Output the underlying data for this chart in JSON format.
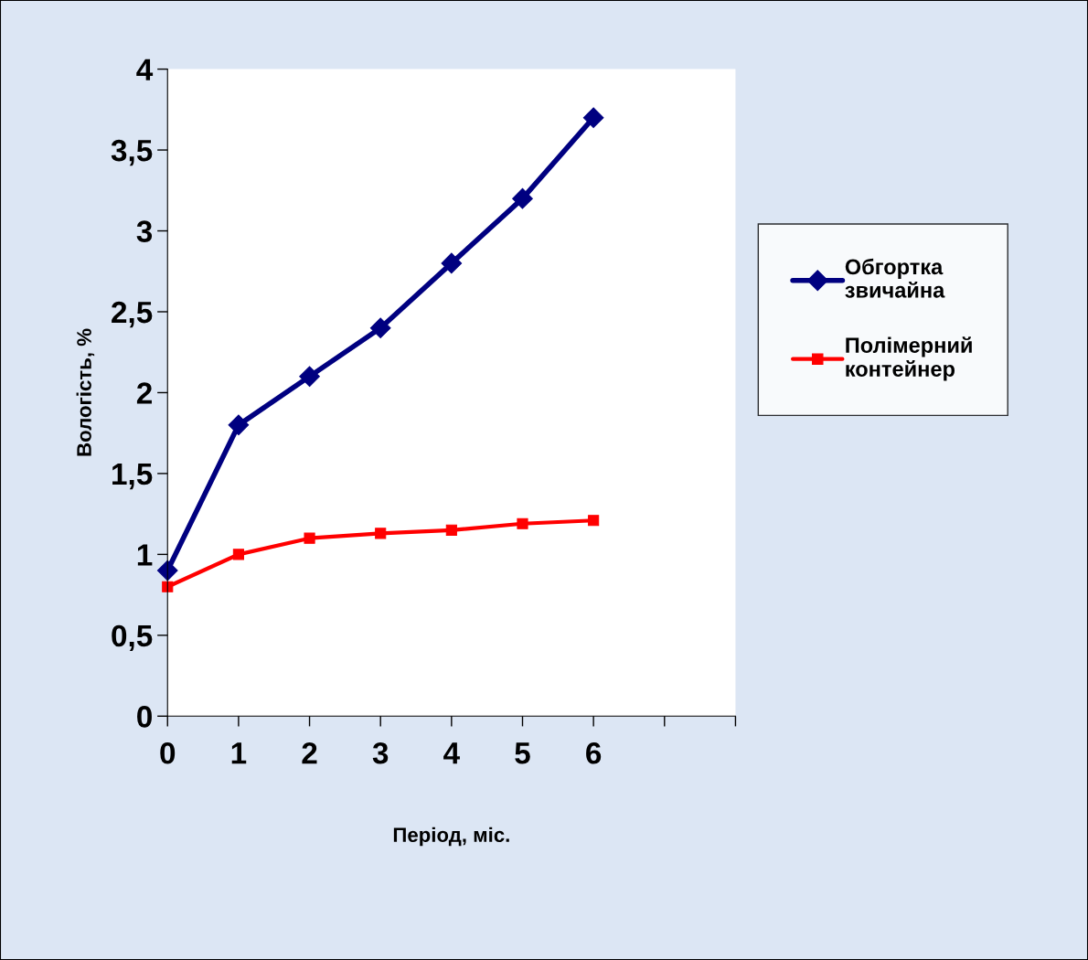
{
  "chart_data": {
    "type": "line",
    "xlabel": "Період, міс.",
    "ylabel": "Вологість, %",
    "x": [
      0,
      1,
      2,
      3,
      4,
      5,
      6
    ],
    "series": [
      {
        "name": "Обгортка звичайна",
        "color": "#000080",
        "marker": "diamond",
        "values": [
          0.9,
          1.8,
          2.1,
          2.4,
          2.8,
          3.2,
          3.7
        ]
      },
      {
        "name": "Полімерний контейнер",
        "color": "#ff0000",
        "marker": "square",
        "values": [
          0.8,
          1.0,
          1.1,
          1.13,
          1.15,
          1.19,
          1.21
        ]
      }
    ],
    "xlim": [
      0,
      8
    ],
    "xticks": [
      0,
      1,
      2,
      3,
      4,
      5,
      6,
      {
        "value": 7,
        "label": null
      },
      {
        "value": 8,
        "label": null
      }
    ],
    "ylim": [
      0,
      4
    ],
    "yticks": [
      0,
      {
        "value": 0.5,
        "label": "0,5"
      },
      1,
      {
        "value": 1.5,
        "label": "1,5"
      },
      2,
      {
        "value": 2.5,
        "label": "2,5"
      },
      3,
      {
        "value": 3.5,
        "label": "3,5"
      },
      4
    ],
    "grid": false,
    "legend": "right",
    "line_style": "solid"
  }
}
